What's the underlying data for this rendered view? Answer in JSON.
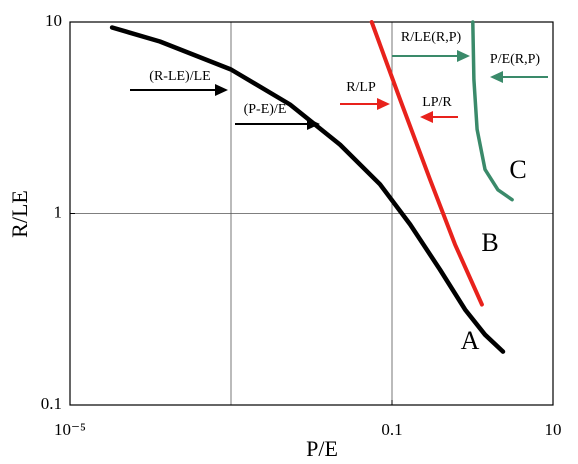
{
  "chart_data": {
    "type": "line",
    "xlabel": "P/E",
    "ylabel": "R/LE",
    "xlog": true,
    "ylog": true,
    "xlim": [
      1e-05,
      10
    ],
    "ylim": [
      0.1,
      10
    ],
    "xticks": [
      {
        "value": 1e-05,
        "label": "10⁻⁵"
      },
      0.1,
      10
    ],
    "yticks": [
      0.1,
      1,
      10
    ],
    "xgrid": [
      0.001,
      0.1
    ],
    "ygrid": [
      1
    ],
    "series": [
      {
        "name": "A",
        "color": "#000000",
        "x": [
          3.33e-05,
          0.000131,
          0.001,
          0.00541,
          0.0226,
          0.071,
          0.168,
          0.394,
          0.81,
          1.43,
          2.39
        ],
        "y": [
          9.36,
          7.91,
          5.65,
          3.71,
          2.29,
          1.42,
          0.877,
          0.51,
          0.315,
          0.233,
          0.19
        ]
      },
      {
        "name": "B",
        "color": "#e8221c",
        "x": [
          0.056,
          0.126,
          0.296,
          0.607,
          1.31
        ],
        "y": [
          10,
          3.94,
          1.51,
          0.69,
          0.335
        ]
      },
      {
        "name": "C",
        "color": "#3a8a6a",
        "x": [
          1.01,
          1.04,
          1.14,
          1.43,
          2.07,
          3.1
        ],
        "y": [
          10,
          5.01,
          2.75,
          1.7,
          1.33,
          1.18
        ]
      }
    ],
    "annotations": [
      {
        "text": "(R-LE)/LE",
        "color": "#000000"
      },
      {
        "text": "(P-E)/E",
        "color": "#000000"
      },
      {
        "text": "R/LP",
        "color": "#e8221c"
      },
      {
        "text": "LP/R",
        "color": "#e8221c"
      },
      {
        "text": "R/LE(R,P)",
        "color": "#3a8a6a"
      },
      {
        "text": "P/E(R,P)",
        "color": "#3a8a6a"
      }
    ]
  }
}
